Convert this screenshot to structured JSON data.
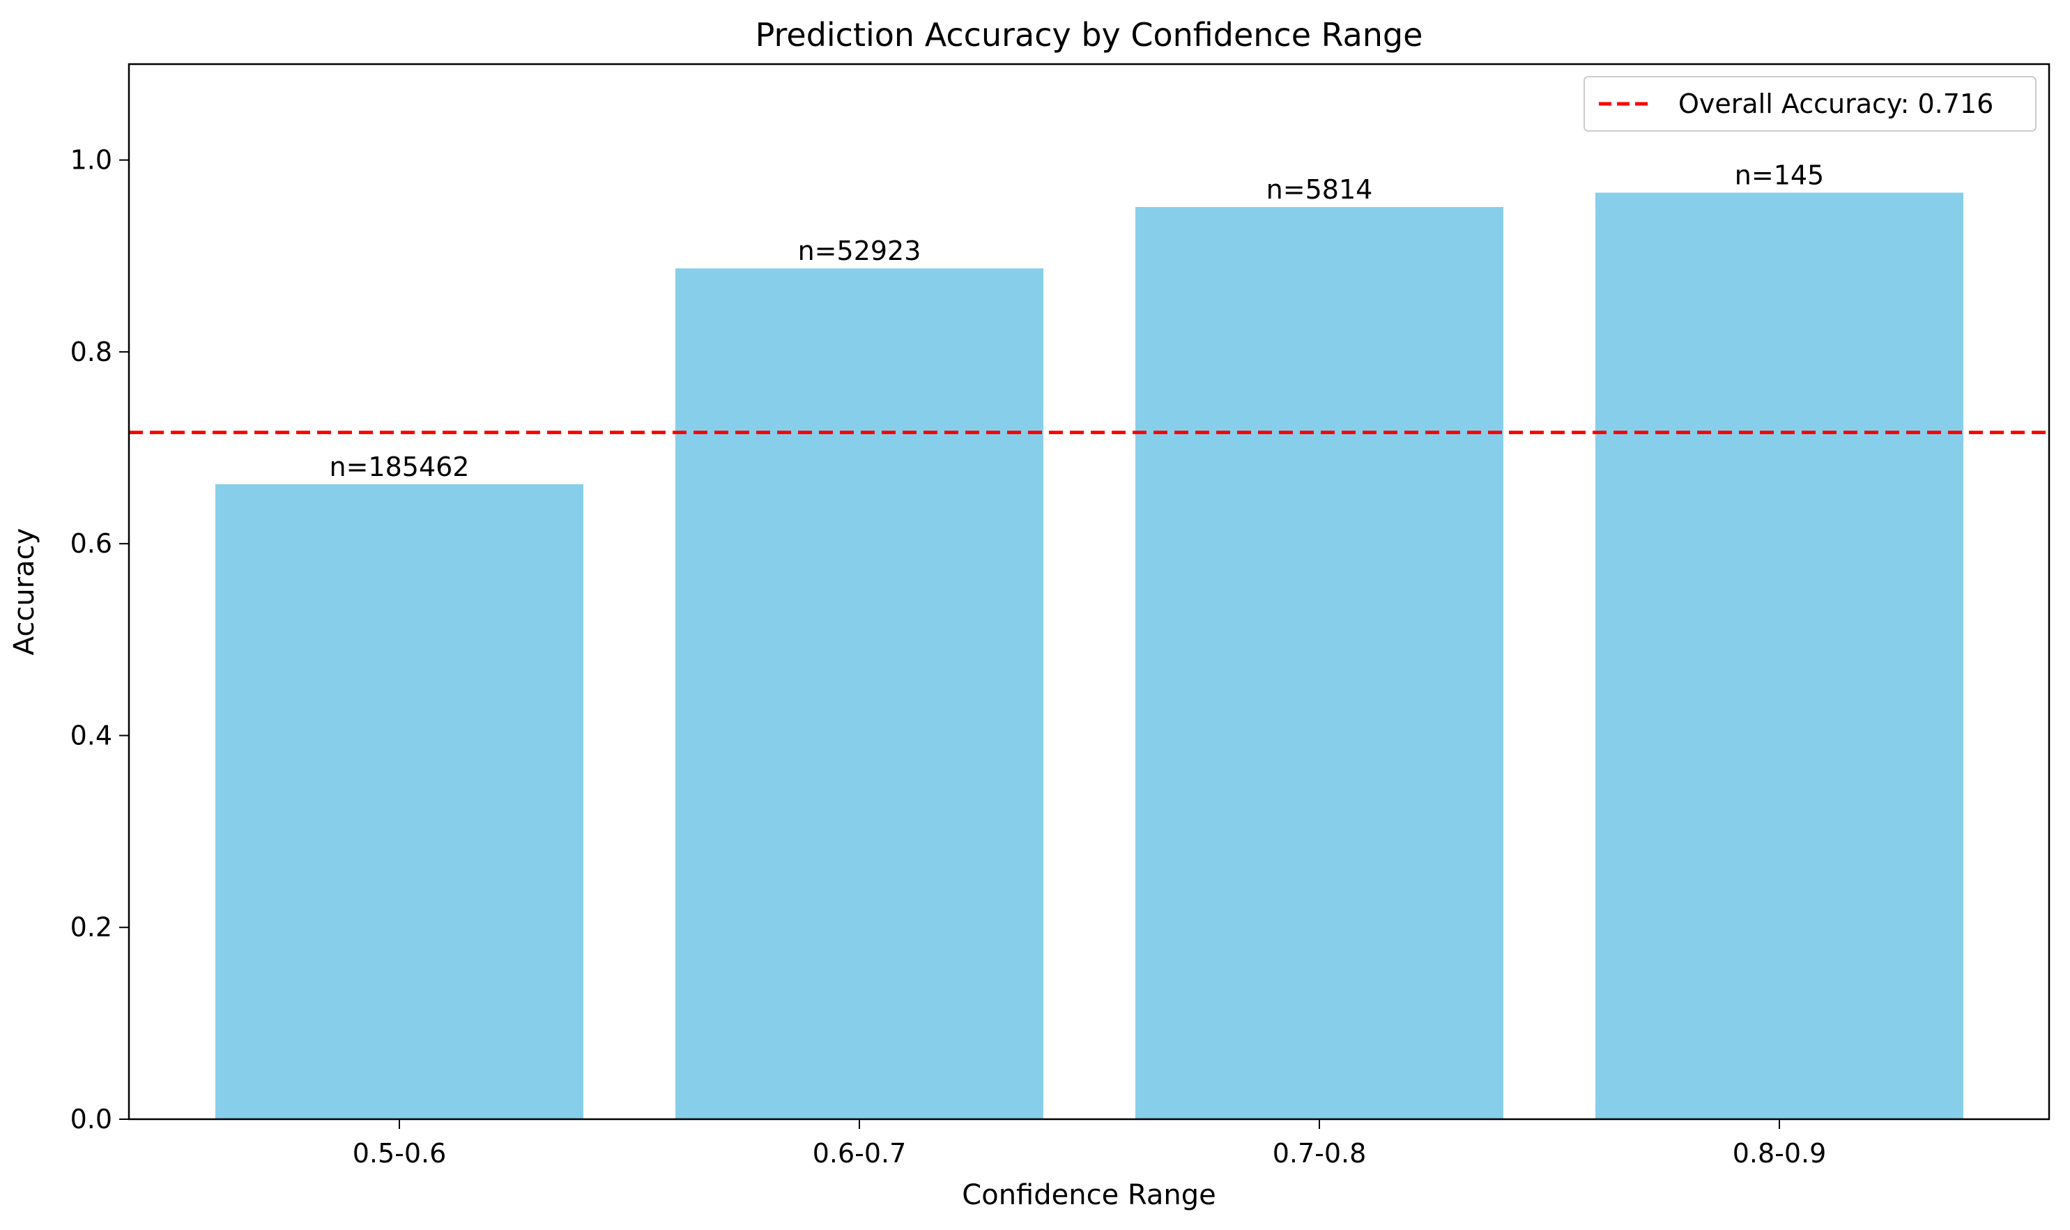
{
  "chart_data": {
    "type": "bar",
    "title": "Prediction Accuracy by Confidence Range",
    "xlabel": "Confidence Range",
    "ylabel": "Accuracy",
    "categories": [
      "0.5-0.6",
      "0.6-0.7",
      "0.7-0.8",
      "0.8-0.9"
    ],
    "values": [
      0.662,
      0.887,
      0.951,
      0.966
    ],
    "bar_labels": [
      "n=185462",
      "n=52923",
      "n=5814",
      "n=145"
    ],
    "ylim": [
      0,
      1.1
    ],
    "yticks": [
      0.0,
      0.2,
      0.4,
      0.6,
      0.8,
      1.0
    ],
    "ytick_labels": [
      "0.0",
      "0.2",
      "0.4",
      "0.6",
      "0.8",
      "1.0"
    ],
    "reference_line": {
      "value": 0.716,
      "label": "Overall Accuracy: 0.716",
      "color": "#ff0000",
      "style": "dashed"
    },
    "bar_color": "#87ceeb",
    "legend_position": "top-right",
    "grid": false
  }
}
